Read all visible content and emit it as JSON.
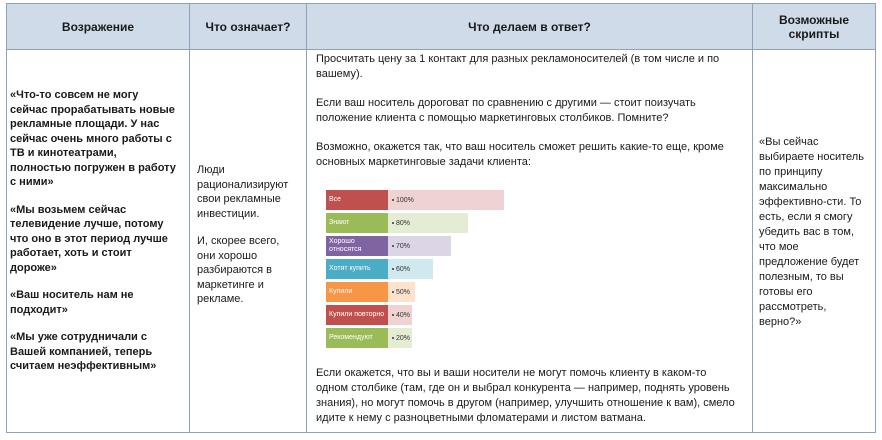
{
  "headers": {
    "objection": "Возражение",
    "meaning": "Что означает?",
    "response": "Что делаем  в ответ?",
    "scripts": "Возможные скрипты"
  },
  "objections": [
    "«Что-то совсем не могу сейчас прорабатывать новые рекламные площади. У нас сейчас очень много работы с ТВ и кинотеатрами, полностью погружен в работу с ними»",
    "«Мы возьмем сейчас телевидение лучше, потому что оно в этот период лучше работает, хоть и стоит дороже»",
    "«Ваш носитель нам не подходит»",
    "«Мы уже сотрудничали с Вашей компанией, теперь считаем неэффективным»"
  ],
  "meaning": [
    "Люди рационализируют свои рекламные инвестиции.",
    "И, скорее всего, они хорошо разбираются в маркетинге и рекламе."
  ],
  "response": {
    "p1": "Просчитать цену за 1 контакт для  разных рекламоносителей (в том числе и по вашему).",
    "p2": "Если ваш носитель дороговат по сравнению с другими — стоит поизучать положение клиента  с помощью маркетинговых столбиков. Помните?",
    "p3": "Возможно, окажется так, что ваш носитель сможет решить какие-то еще, кроме основных  маркетинговые задачи клиента:",
    "p4": "Если окажется, что вы и ваши носители  не могут помочь клиенту в каком-то одном столбике (там, где он и выбрал конкурента — например, поднять уровень знания),  но могут помочь в другом (например, улучшить отношение к вам), смело идите к нему с разноцветными фломатерами и листом ватмана."
  },
  "chart_data": {
    "type": "bar",
    "categories": [
      "Все",
      "Знают",
      "Хорошо относятся",
      "Хотят купить",
      "Купили",
      "Купили повторно",
      "Рекомендуют"
    ],
    "values": [
      100,
      80,
      70,
      60,
      50,
      40,
      20
    ],
    "value_labels": [
      "100%",
      "80%",
      "70%",
      "60%",
      "50%",
      "40%",
      "20%"
    ],
    "colors": [
      "#c0504d",
      "#9bbb59",
      "#8064a2",
      "#4bacc6",
      "#f79646",
      "#c0504d",
      "#9bbb59"
    ],
    "light_colors": [
      "#efd3d2",
      "#e4edd3",
      "#dcd5e6",
      "#d0e9ef",
      "#fde3cd",
      "#efd3d2",
      "#e4edd3"
    ],
    "xlim": [
      0,
      100
    ]
  },
  "script": "«Вы сейчас выбираете носитель по принципу максимально эффективно-сти. То есть, если я смогу убедить вас в том, что мое предложение будет полезным, то вы готовы его рассмотреть, верно?»"
}
